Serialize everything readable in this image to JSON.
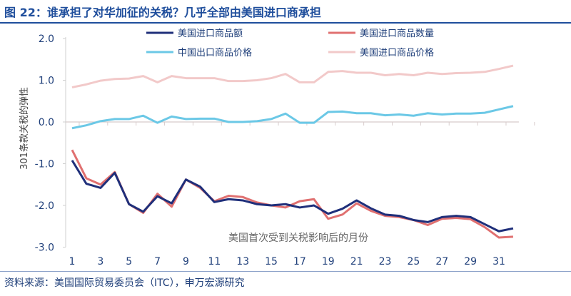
{
  "title": "图 22：谁承担了对华加征的关税？几乎全部由美国进口商承担",
  "source": "资料来源：美国国际贸易委员会（ITC），申万宏源研究",
  "chart_data": {
    "type": "line",
    "title": "",
    "xlabel": "美国首次受到关税影响后的月份",
    "ylabel": "301条款关税的弹性",
    "ylim": [
      -3.0,
      2.0
    ],
    "yticks": [
      "2.0",
      "1.0",
      "0.0",
      "-1.0",
      "-2.0",
      "-3.0"
    ],
    "ytick_values": [
      2,
      1,
      0,
      -1,
      -2,
      -3
    ],
    "xticks": [
      "1",
      "3",
      "5",
      "7",
      "9",
      "11",
      "13",
      "15",
      "17",
      "19",
      "21",
      "23",
      "25",
      "27",
      "29",
      "31"
    ],
    "x": [
      1,
      2,
      3,
      4,
      5,
      6,
      7,
      8,
      9,
      10,
      11,
      12,
      13,
      14,
      15,
      16,
      17,
      18,
      19,
      20,
      21,
      22,
      23,
      24,
      25,
      26,
      27,
      28,
      29,
      30,
      31,
      32
    ],
    "grid": false,
    "legend": "top",
    "series": [
      {
        "name": "美国进口商品额",
        "color": "#1f2f7a",
        "values": [
          -0.92,
          -1.48,
          -1.58,
          -1.22,
          -1.97,
          -2.15,
          -1.78,
          -1.95,
          -1.38,
          -1.55,
          -1.92,
          -1.85,
          -1.88,
          -1.97,
          -2.0,
          -1.97,
          -2.05,
          -2.0,
          -2.2,
          -2.08,
          -1.88,
          -2.07,
          -2.22,
          -2.25,
          -2.35,
          -2.4,
          -2.28,
          -2.25,
          -2.28,
          -2.45,
          -2.62,
          -2.55
        ]
      },
      {
        "name": "美国进口商品数量",
        "color": "#e07070",
        "values": [
          -0.67,
          -1.35,
          -1.5,
          -1.2,
          -1.97,
          -2.18,
          -1.72,
          -2.03,
          -1.38,
          -1.58,
          -1.9,
          -1.77,
          -1.8,
          -1.93,
          -2.0,
          -2.05,
          -1.9,
          -1.85,
          -2.32,
          -2.22,
          -1.95,
          -2.13,
          -2.25,
          -2.28,
          -2.35,
          -2.47,
          -2.32,
          -2.3,
          -2.33,
          -2.52,
          -2.77,
          -2.75
        ]
      },
      {
        "name": "中国出口商品价格",
        "color": "#6bc8e6",
        "values": [
          -0.15,
          -0.08,
          0.02,
          0.07,
          0.07,
          0.15,
          -0.02,
          0.13,
          0.07,
          0.08,
          0.08,
          0.0,
          0.0,
          0.02,
          0.07,
          0.2,
          -0.02,
          -0.02,
          0.24,
          0.25,
          0.21,
          0.21,
          0.16,
          0.18,
          0.15,
          0.21,
          0.18,
          0.2,
          0.2,
          0.22,
          0.3,
          0.38
        ]
      },
      {
        "name": "美国进口商品价格",
        "color": "#f2c9c9",
        "values": [
          0.83,
          0.9,
          0.99,
          1.03,
          1.04,
          1.1,
          0.95,
          1.1,
          1.05,
          1.05,
          1.05,
          0.98,
          0.98,
          1.0,
          1.05,
          1.15,
          0.95,
          0.95,
          1.2,
          1.22,
          1.18,
          1.18,
          1.12,
          1.15,
          1.12,
          1.18,
          1.15,
          1.17,
          1.18,
          1.2,
          1.27,
          1.35
        ]
      }
    ]
  }
}
